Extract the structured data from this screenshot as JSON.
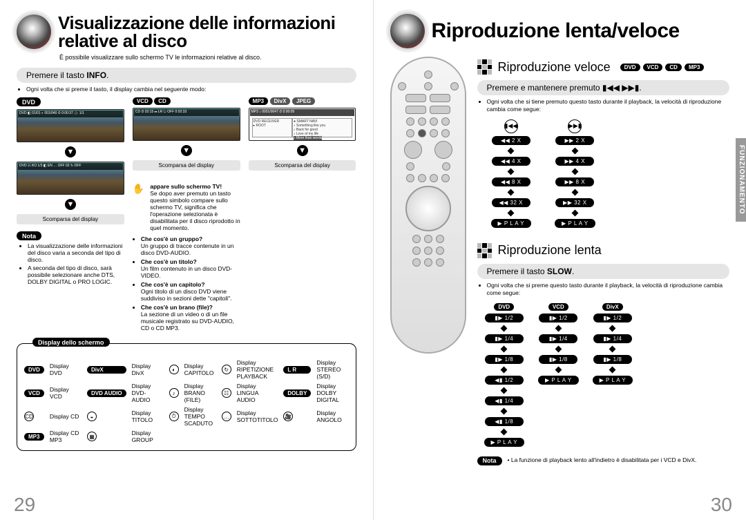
{
  "page_left": {
    "number": "29",
    "title": "Visualizzazione delle informazioni relative al disco",
    "subtitle": "È possibile visualizzare sullo schermo TV le informazioni relative al disco.",
    "section1": {
      "pre": "Premere il tasto ",
      "bold": "INFO",
      "post": "."
    },
    "section1_bullet": "Ogni volta che si preme il tasto, il display cambia nel seguente modo:",
    "col_labels": {
      "dvd": "DVD",
      "vcd": "VCD",
      "cd": "CD",
      "mp3": "MP3",
      "divx": "DivX",
      "jpeg": "JPEG"
    },
    "disp_off": "Scomparsa del display",
    "nota_label": "Nota",
    "nota_items": [
      "La visualizzazione delle informazioni del disco varia a seconda del tipo di disco.",
      "A seconda del tipo di disco, sarà possibile selezionare anche DTS, DOLBY DIGITAL o PRO LOGIC."
    ],
    "hand_title": "appare sullo schermo TV!",
    "hand_body": "Se dopo aver premuto un tasto questo simbolo compare sullo schermo TV, significa che l'operazione selezionata è disabilitata per il disco riprodotto in quel momento.",
    "faq": [
      {
        "q": "Che cos'è un gruppo?",
        "a": "Un gruppo di tracce contenute in un disco DVD-AUDIO."
      },
      {
        "q": "Che cos'è un titolo?",
        "a": "Un film contenuto in un disco DVD-VIDEO."
      },
      {
        "q": "Che cos'è un capitolo?",
        "a": "Ogni titolo di un disco DVD viene suddiviso in sezioni dette \"capitoli\"."
      },
      {
        "q": "Che cos'è un brano (file)?",
        "a": "La sezione di un video o di un file musicale registrato su DVD-AUDIO, CD o CD MP3."
      }
    ],
    "legend_title": "Display dello schermo",
    "legend": [
      [
        "DVD",
        "Display DVD",
        "DivX",
        "Display DivX",
        "◐",
        "Display CAPITOLO",
        "↻",
        "Display RIPETIZIONE PLAYBACK",
        "L R",
        "Display STEREO (S/D)"
      ],
      [
        "VCD",
        "Display VCD",
        "DVD AUDIO",
        "Display DVD-AUDIO",
        "♪",
        "Display BRANO (FILE)",
        "☷",
        "Display LINGUA AUDIO",
        "DOLBY",
        "Display DOLBY DIGITAL"
      ],
      [
        "CD",
        "Display CD",
        "◒",
        "Display TITOLO",
        "⏱",
        "Display TEMPO SCADUTO",
        "…",
        "Display SOTTOTITOLO",
        "🎥",
        "Display ANGOLO"
      ],
      [
        "MP3",
        "Display CD MP3",
        "▦",
        "Display GROUP",
        "",
        "",
        "",
        "",
        "",
        ""
      ]
    ]
  },
  "page_right": {
    "number": "30",
    "title": "Riproduzione lenta/veloce",
    "side_tab": "FUNZIONAMENTO",
    "fast": {
      "heading": "Riproduzione veloce",
      "formats": [
        "DVD",
        "VCD",
        "CD",
        "MP3"
      ],
      "bar": "Premere e mantenere premuto ▮◀◀ ▶▶▮.",
      "bullet": "Ogni volta che si tiene premuto questo tasto durante il playback, la velocità di riproduzione cambia come segue:",
      "left_col": [
        "◀◀  2 X",
        "◀◀  4 X",
        "◀◀  8 X",
        "◀◀  32 X",
        "▶  P L A Y"
      ],
      "right_col": [
        "▶▶  2 X",
        "▶▶  4 X",
        "▶▶  8 X",
        "▶▶  32 X",
        "▶  P L A Y"
      ],
      "left_head": "▮◀◀",
      "right_head": "▶▶▮"
    },
    "slow": {
      "heading": "Riproduzione lenta",
      "bar_pre": "Premere il tasto ",
      "bar_bold": "SLOW",
      "bar_post": ".",
      "bullet": "Ogni volta che si preme questo tasto durante il playback, la velocità di riproduzione cambia come segue:",
      "cols": [
        {
          "label": "DVD",
          "steps": [
            "▮▶  1/2",
            "▮▶  1/4",
            "▮▶  1/8",
            "◀▮  1/2",
            "◀▮  1/4",
            "◀▮  1/8",
            "▶  P L A Y"
          ]
        },
        {
          "label": "VCD",
          "steps": [
            "▮▶  1/2",
            "▮▶  1/4",
            "▮▶  1/8",
            "▶  P L A Y"
          ]
        },
        {
          "label": "DivX",
          "steps": [
            "▮▶  1/2",
            "▮▶  1/4",
            "▮▶  1/8",
            "▶  P L A Y"
          ]
        }
      ],
      "nota_label": "Nota",
      "nota_text": "La funzione di playback lento all'indietro è disabilitata per i VCD e DivX."
    }
  }
}
